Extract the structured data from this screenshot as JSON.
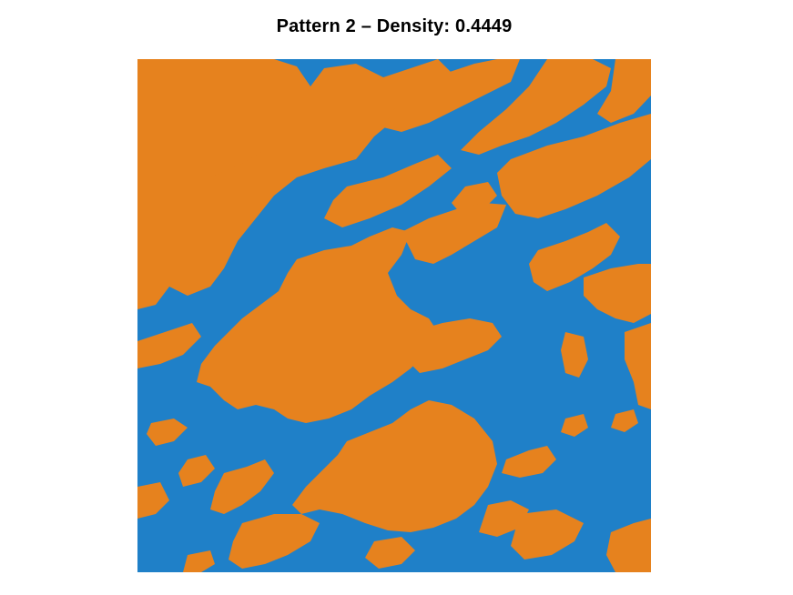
{
  "figure": {
    "title": "Pattern 2 – Density: 0.4449"
  },
  "pattern": {
    "index": 2,
    "density": 0.4449,
    "colors": {
      "background_phase": "#1f80c8",
      "foreground_phase": "#e6821e",
      "figure_background": "#ffffff"
    }
  }
}
